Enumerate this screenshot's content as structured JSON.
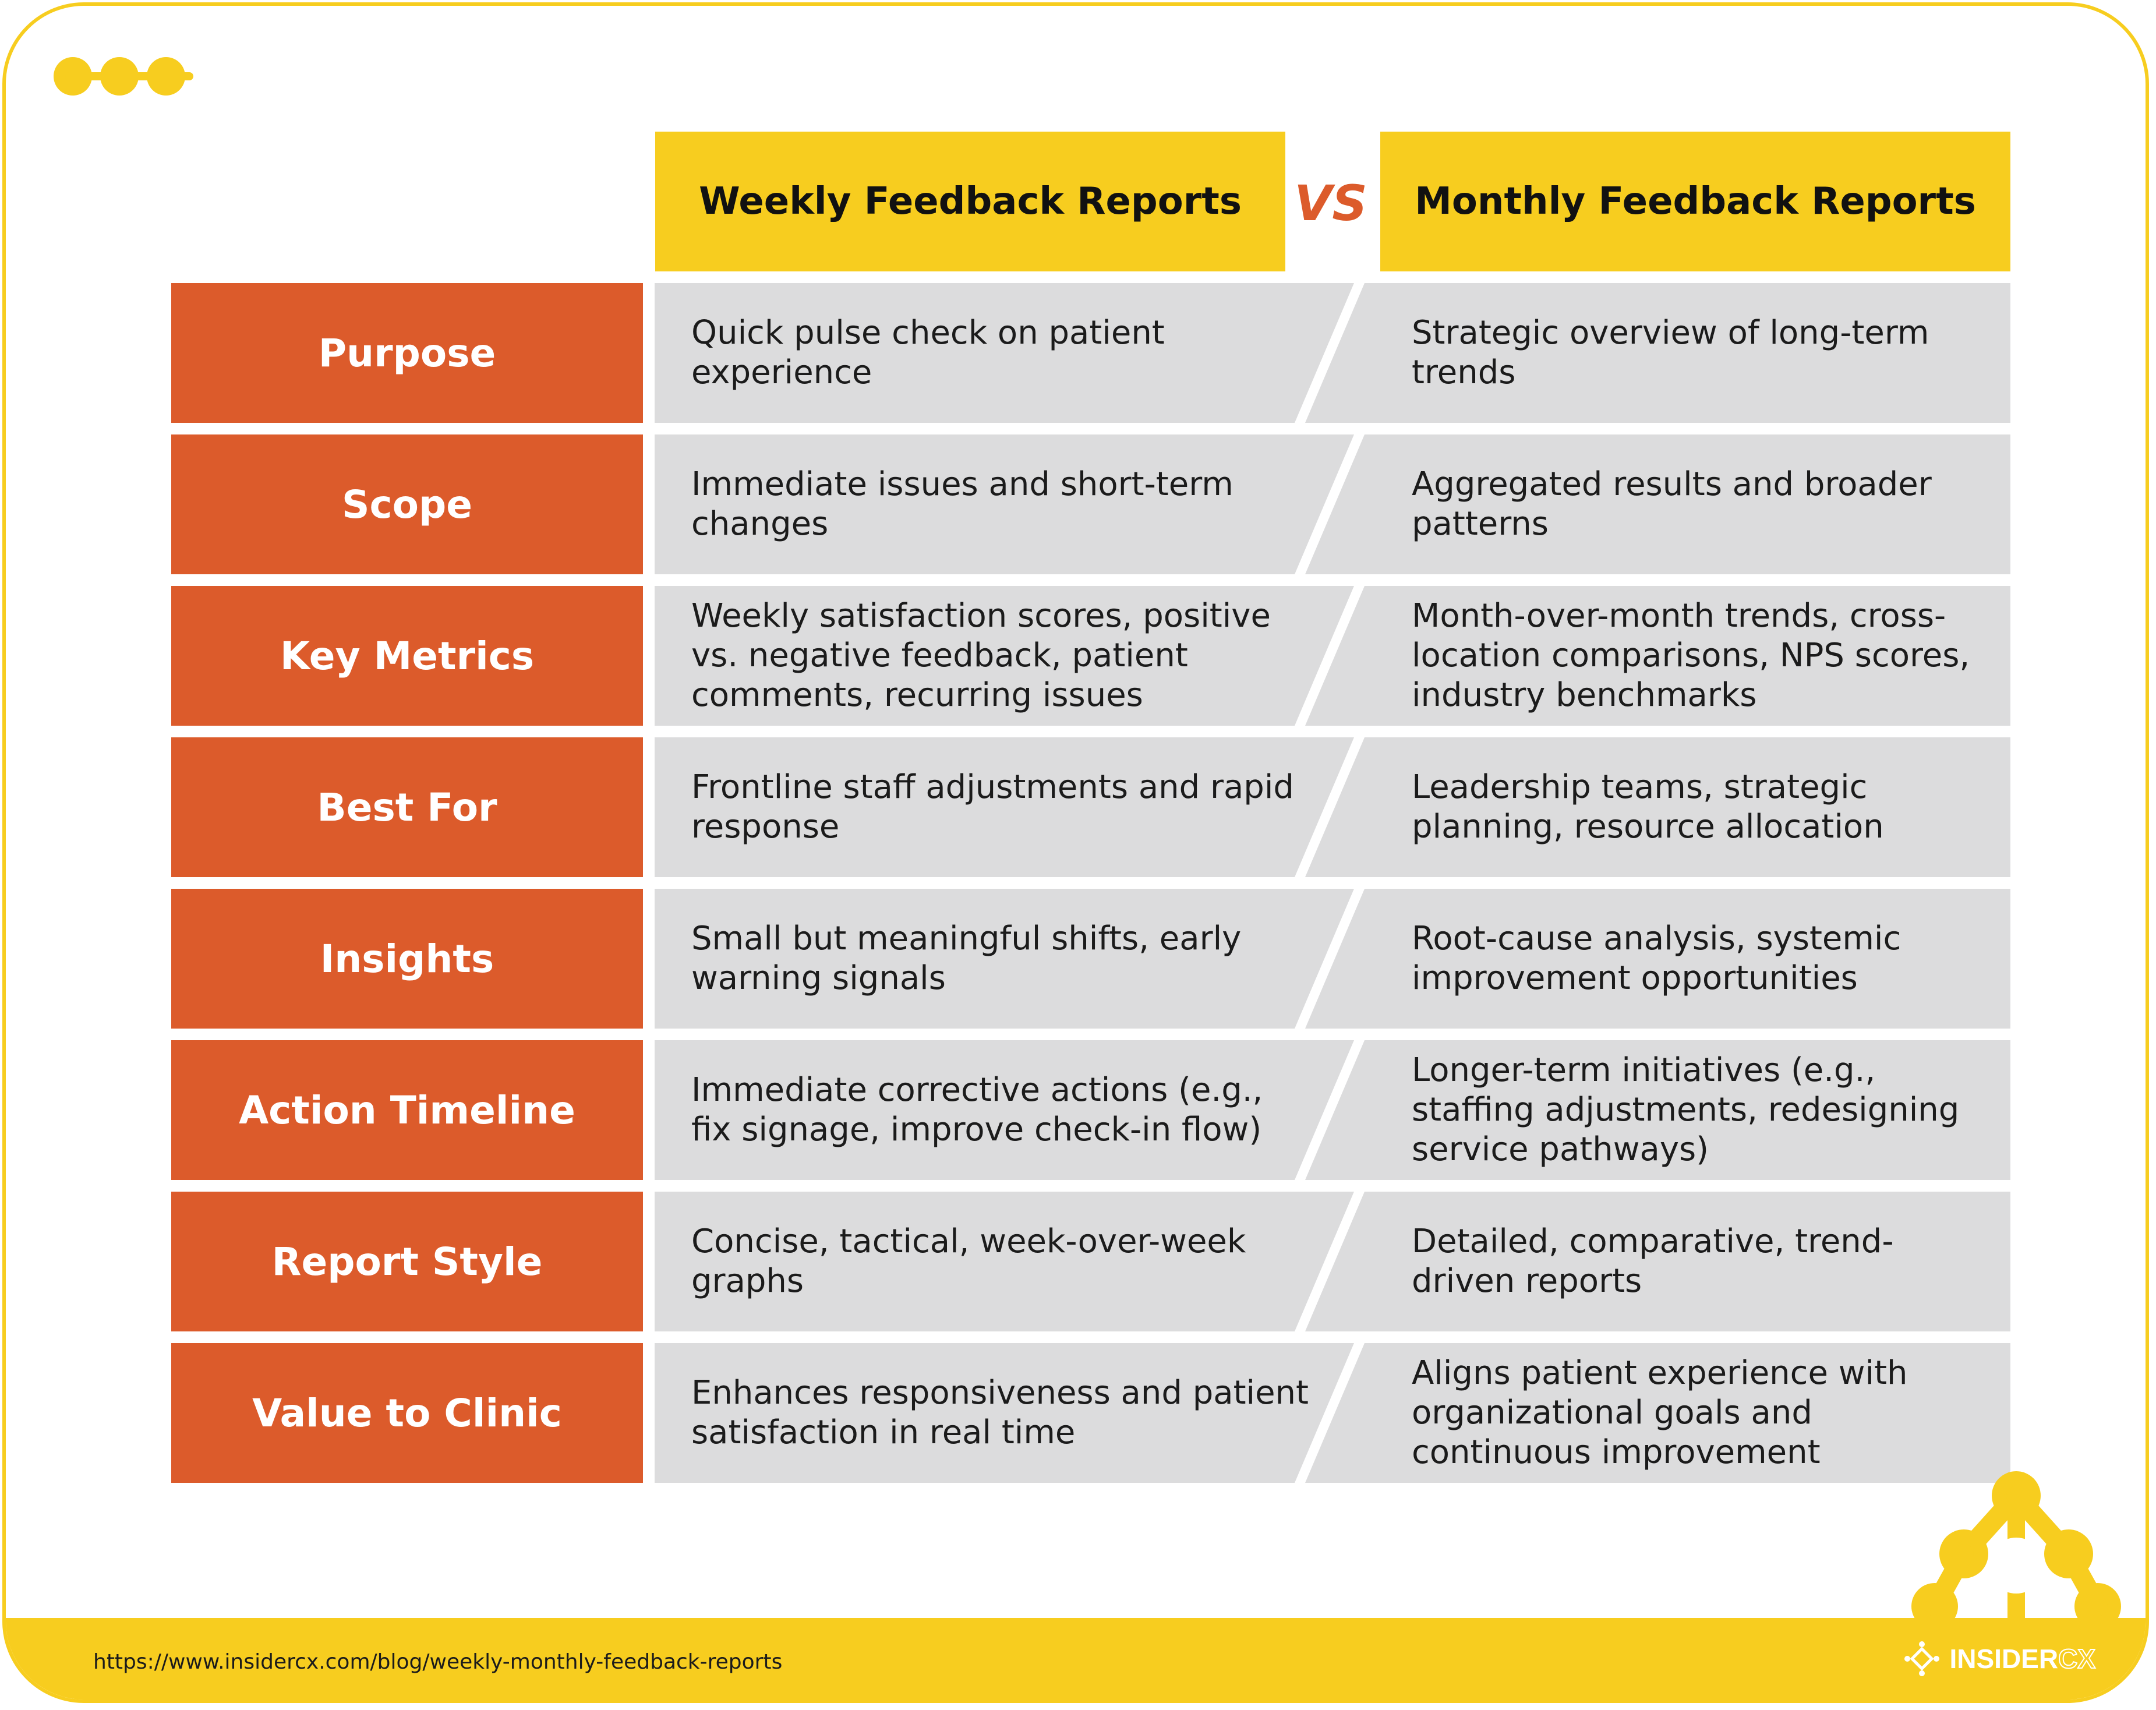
{
  "header": {
    "weekly_title": "Weekly Feedback Reports",
    "vs_label": "VS",
    "monthly_title": "Monthly Feedback Reports"
  },
  "rows": [
    {
      "label": "Purpose",
      "weekly": "Quick pulse check on patient experience",
      "monthly": "Strategic overview of long-term trends"
    },
    {
      "label": "Scope",
      "weekly": "Immediate issues and short-term changes",
      "monthly": "Aggregated results and broader patterns"
    },
    {
      "label": "Key Metrics",
      "weekly": "Weekly satisfaction scores, positive vs. negative feedback, patient comments, recurring issues",
      "monthly": "Month-over-month trends, cross-location comparisons, NPS scores, industry benchmarks"
    },
    {
      "label": "Best For",
      "weekly": "Frontline staff adjustments and rapid response",
      "monthly": "Leadership teams, strategic planning, resource allocation"
    },
    {
      "label": "Insights",
      "weekly": "Small but meaningful shifts, early warning signals",
      "monthly": "Root-cause analysis, systemic improvement opportunities"
    },
    {
      "label": "Action Timeline",
      "weekly": "Immediate corrective actions (e.g., fix signage, improve check-in flow)",
      "monthly": "Longer-term initiatives (e.g., staffing adjustments, redesigning service pathways)"
    },
    {
      "label": "Report Style",
      "weekly": "Concise, tactical, week-over-week graphs",
      "monthly": "Detailed, comparative, trend-driven reports"
    },
    {
      "label": "Value to Clinic",
      "weekly": "Enhances responsiveness and patient satisfaction in real time",
      "monthly": "Aligns patient experience with organizational goals and continuous improvement"
    }
  ],
  "footer": {
    "url": "https://www.insidercx.com/blog/weekly-monthly-feedback-reports",
    "brand_main": "INSIDER",
    "brand_accent": "CX"
  },
  "colors": {
    "accent_yellow": "#f7cd1f",
    "label_orange": "#dc5b2b",
    "cell_gray": "#dcdcdd"
  }
}
